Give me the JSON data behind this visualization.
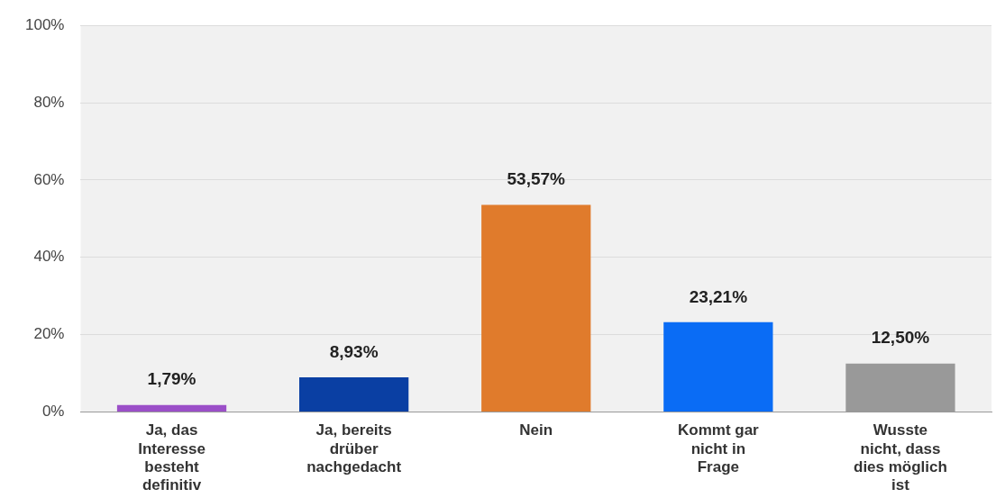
{
  "chart_data": {
    "type": "bar",
    "categories": [
      "Ja, das Interesse besteht definitiv",
      "Ja, bereits drüber nachgedacht",
      "Nein",
      "Kommt gar nicht in Frage",
      "Wusste nicht, dass dies möglich ist"
    ],
    "values": [
      1.79,
      8.93,
      53.57,
      23.21,
      12.5
    ],
    "colors": [
      "#9b4fc8",
      "#0a3fa3",
      "#e07b2c",
      "#0a6cf5",
      "#999999"
    ],
    "value_labels": [
      "1,79%",
      "8,93%",
      "53,57%",
      "23,21%",
      "12,50%"
    ],
    "ylim": [
      0,
      100
    ],
    "yticks": [
      {
        "value": 0,
        "label": "0%"
      },
      {
        "value": 20,
        "label": "20%"
      },
      {
        "value": 40,
        "label": "40%"
      },
      {
        "value": 60,
        "label": "60%"
      },
      {
        "value": 80,
        "label": "80%"
      },
      {
        "value": 100,
        "label": "100%"
      }
    ],
    "grid": "y",
    "legend": false
  }
}
